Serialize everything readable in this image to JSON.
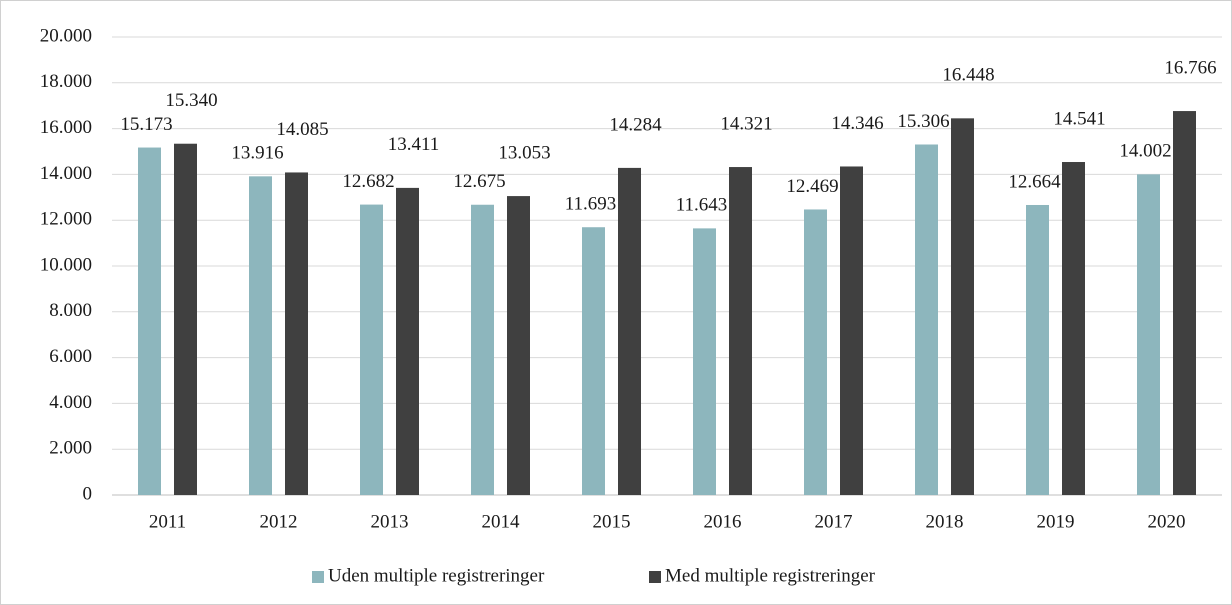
{
  "chart_data": {
    "type": "bar",
    "categories": [
      "2011",
      "2012",
      "2013",
      "2014",
      "2015",
      "2016",
      "2017",
      "2018",
      "2019",
      "2020"
    ],
    "series": [
      {
        "name": "Uden multiple registreringer",
        "color": "#8db6bd",
        "values": [
          15173,
          13916,
          12682,
          12675,
          11693,
          11643,
          12469,
          15306,
          12664,
          14002
        ],
        "value_labels": [
          "15.173",
          "13.916",
          "12.682",
          "12.675",
          "11.693",
          "11.643",
          "12.469",
          "15.306",
          "12.664",
          "14.002"
        ]
      },
      {
        "name": "Med multiple registreringer",
        "color": "#404040",
        "values": [
          15340,
          14085,
          13411,
          13053,
          14284,
          14321,
          14346,
          16448,
          14541,
          16766
        ],
        "value_labels": [
          "15.340",
          "14.085",
          "13.411",
          "13.053",
          "14.284",
          "14.321",
          "14.346",
          "16.448",
          "14.541",
          "16.766"
        ]
      }
    ],
    "ylim": [
      0,
      20000
    ],
    "yticks": [
      {
        "value": 0,
        "label": "0"
      },
      {
        "value": 2000,
        "label": "2.000"
      },
      {
        "value": 4000,
        "label": "4.000"
      },
      {
        "value": 6000,
        "label": "6.000"
      },
      {
        "value": 8000,
        "label": "8.000"
      },
      {
        "value": 10000,
        "label": "10.000"
      },
      {
        "value": 12000,
        "label": "12.000"
      },
      {
        "value": 14000,
        "label": "14.000"
      },
      {
        "value": 16000,
        "label": "16.000"
      },
      {
        "value": 18000,
        "label": "18.000"
      },
      {
        "value": 20000,
        "label": "20.000"
      }
    ],
    "grid": true,
    "legend": "bottom"
  }
}
